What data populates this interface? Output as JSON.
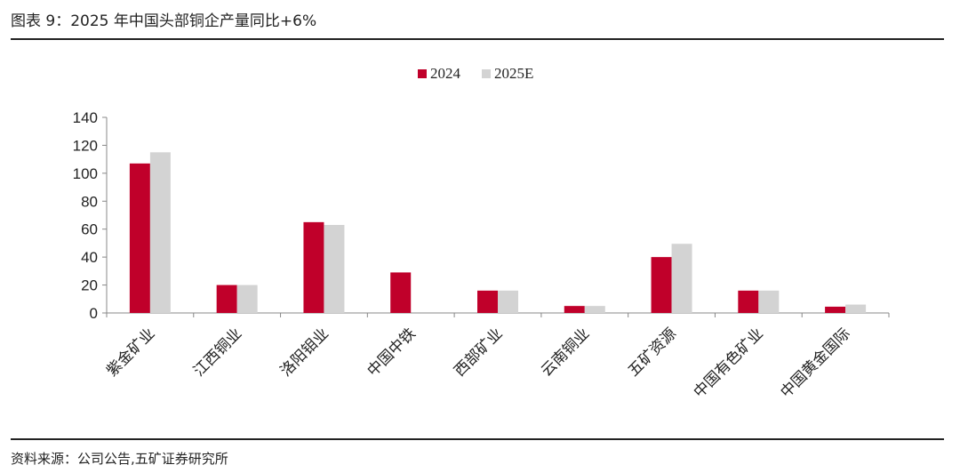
{
  "title": "图表 9：2025 年中国头部铜企产量同比+6%",
  "source": "资料来源：公司公告,五矿证券研究所",
  "colors": {
    "series_2024": "#C0002A",
    "series_2025E": "#D3D3D3",
    "axis": "#888888"
  },
  "chart_data": {
    "type": "bar",
    "categories": [
      "紫金矿业",
      "江西铜业",
      "洛阳钼业",
      "中国中铁",
      "西部矿业",
      "云南铜业",
      "五矿资源",
      "中国有色矿业",
      "中国黄金国际"
    ],
    "series": [
      {
        "name": "2024",
        "values": [
          107,
          20,
          65,
          29,
          16,
          5,
          40,
          16,
          4.5
        ]
      },
      {
        "name": "2025E",
        "values": [
          115,
          20,
          63,
          0,
          16,
          5,
          49.5,
          16,
          6
        ]
      }
    ],
    "yticks": [
      0,
      20,
      40,
      60,
      80,
      100,
      120,
      140
    ],
    "ylim": [
      0,
      140
    ],
    "legend_position": "top-center",
    "grid": false
  }
}
